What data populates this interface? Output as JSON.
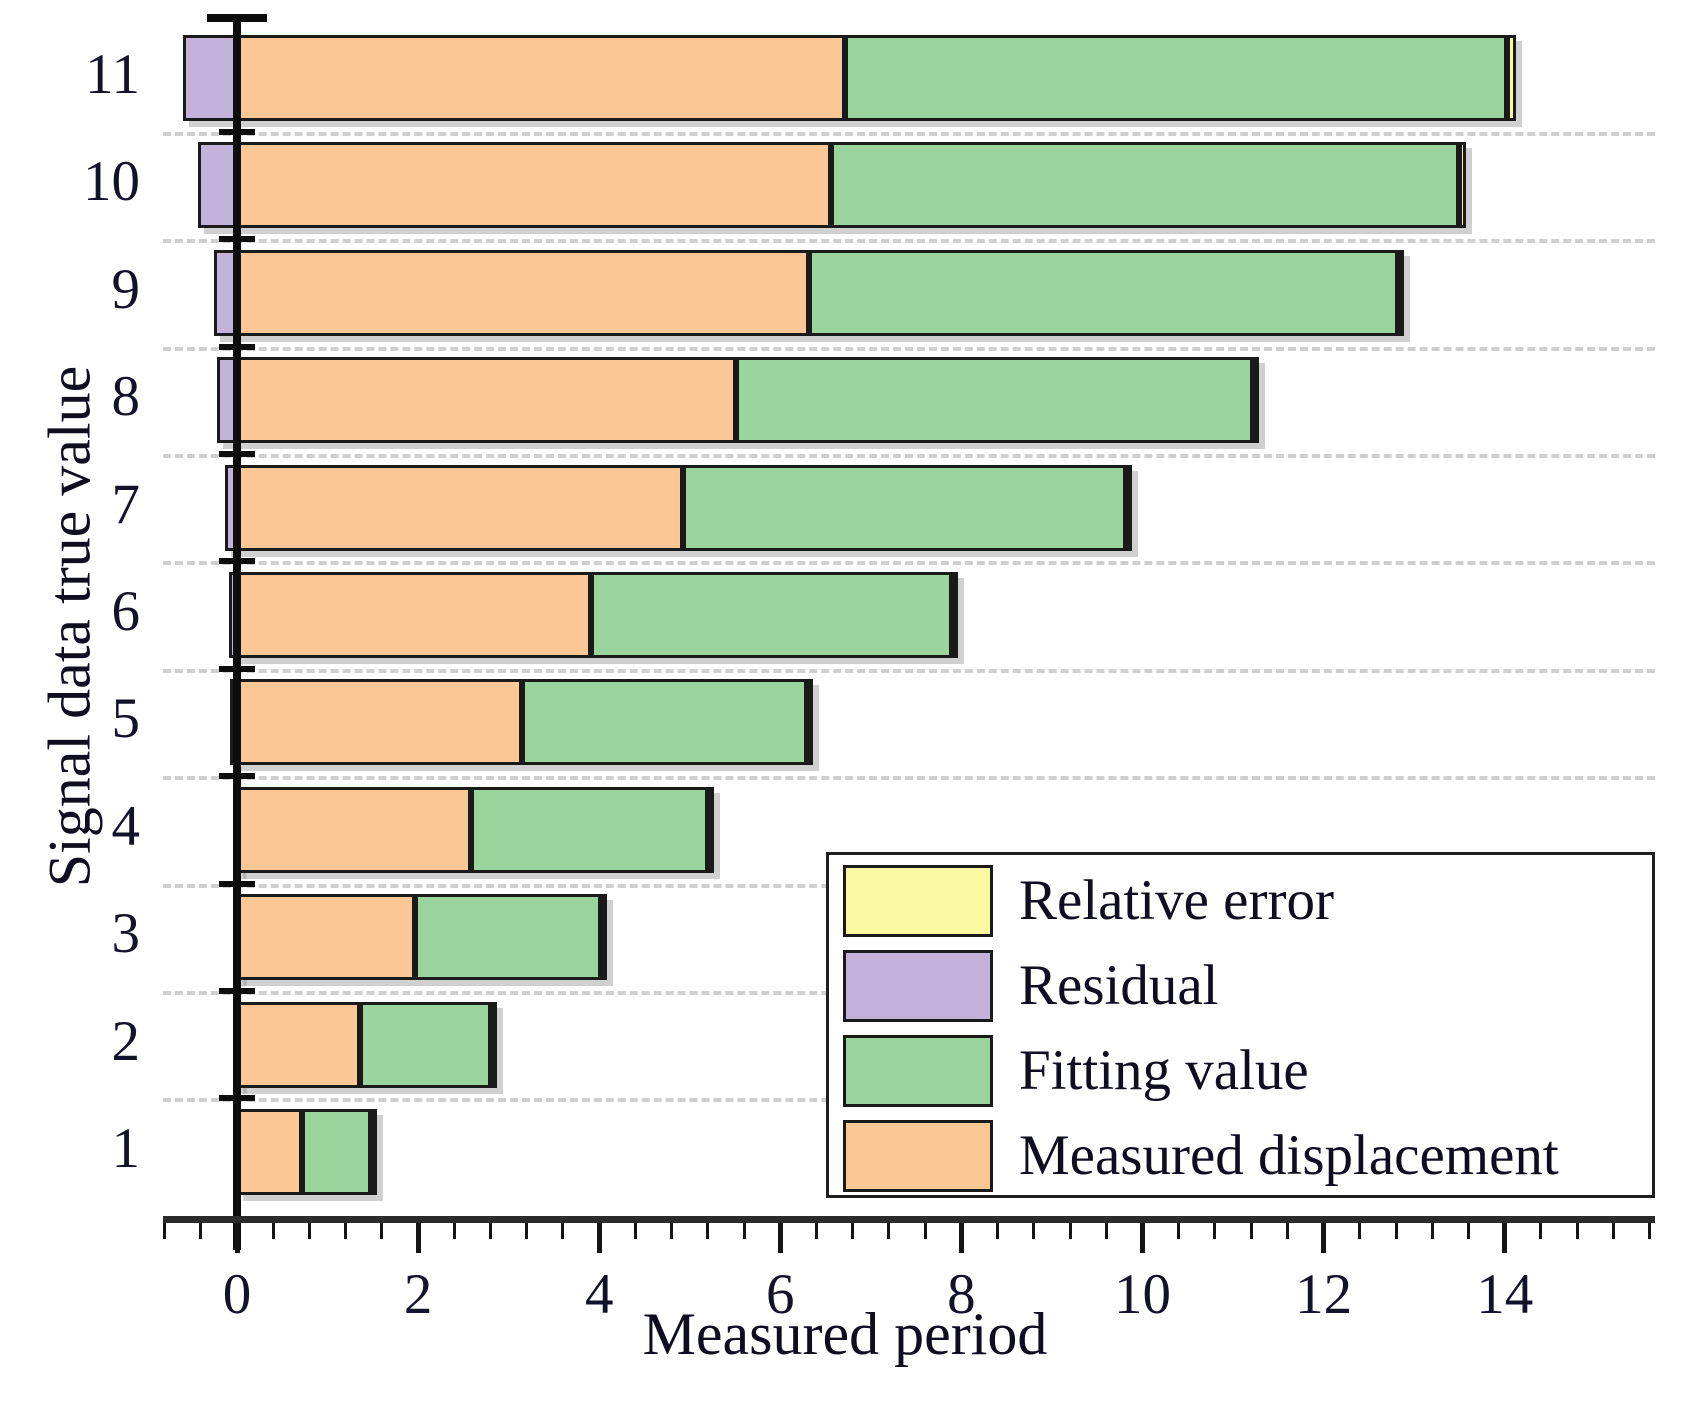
{
  "figure": {
    "x_axis_title": "Measured period",
    "y_axis_title": "Signal data true value"
  },
  "axes": {
    "x_tick_labels": [
      "0",
      "2",
      "4",
      "6",
      "8",
      "10",
      "12",
      "14"
    ],
    "y_tick_labels": [
      "11",
      "10",
      "9",
      "8",
      "7",
      "6",
      "5",
      "4",
      "3",
      "2",
      "1"
    ]
  },
  "legend": {
    "entries": [
      {
        "label": "Relative error",
        "color": "#faf8a0"
      },
      {
        "label": "Residual",
        "color": "#c3b2da"
      },
      {
        "label": "Fitting value",
        "color": "#9ad59e"
      },
      {
        "label": "Measured displacement",
        "color": "#fbc795"
      }
    ]
  },
  "chart_data": {
    "type": "bar",
    "orientation": "horizontal",
    "stacked": true,
    "title": "",
    "xlabel": "Measured period",
    "ylabel": "Signal data true value",
    "categories": [
      11,
      10,
      9,
      8,
      7,
      6,
      5,
      4,
      3,
      2,
      1
    ],
    "series": [
      {
        "name": "Residual",
        "color": "#c3b2da",
        "values": [
          -0.6,
          -0.43,
          -0.25,
          -0.22,
          -0.13,
          -0.09,
          -0.08,
          -0.03,
          -0.02,
          -0.02,
          -0.01
        ]
      },
      {
        "name": "Measured displacement",
        "color": "#fbc795",
        "values": [
          6.71,
          6.56,
          6.32,
          5.51,
          4.92,
          3.91,
          3.15,
          2.58,
          1.97,
          1.36,
          0.72
        ]
      },
      {
        "name": "Fitting value",
        "color": "#9ad59e",
        "values": [
          7.32,
          6.94,
          6.5,
          5.71,
          4.9,
          3.99,
          3.15,
          2.62,
          2.05,
          1.44,
          0.76
        ]
      },
      {
        "name": "Relative error",
        "color": "#faf8a0",
        "values": [
          0.09,
          0.07,
          0.04,
          0.04,
          0.02,
          0.02,
          0.02,
          0.02,
          0.02,
          0.02,
          0.05
        ]
      }
    ],
    "bar_totals": [
      14.12,
      13.57,
      12.86,
      11.26,
      9.84,
      7.92,
      6.32,
      5.22,
      4.04,
      2.82,
      1.53
    ],
    "xlim": [
      -0.82,
      15.6
    ],
    "x_major_ticks": [
      0,
      2,
      4,
      6,
      8,
      10,
      12,
      14
    ],
    "x_minor_step": 0.4,
    "grid": "horizontal-dashed",
    "legend_position": "lower right"
  }
}
